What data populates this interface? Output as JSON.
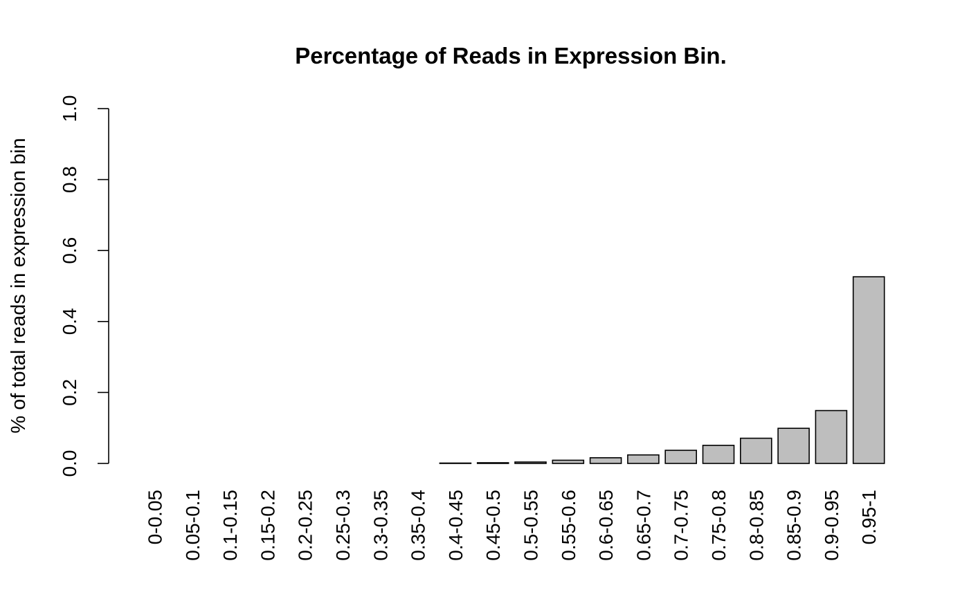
{
  "chart_data": {
    "type": "bar",
    "title": "Percentage of Reads in Expression Bin.",
    "xlabel": "",
    "ylabel": "% of total reads in expression bin",
    "ylim": [
      0,
      1
    ],
    "yticks": [
      "0.0",
      "0.2",
      "0.4",
      "0.6",
      "0.8",
      "1.0"
    ],
    "categories": [
      "0-0.05",
      "0.05-0.1",
      "0.1-0.15",
      "0.15-0.2",
      "0.2-0.25",
      "0.25-0.3",
      "0.3-0.35",
      "0.35-0.4",
      "0.4-0.45",
      "0.45-0.5",
      "0.5-0.55",
      "0.55-0.6",
      "0.6-0.65",
      "0.65-0.7",
      "0.7-0.75",
      "0.75-0.8",
      "0.8-0.85",
      "0.85-0.9",
      "0.9-0.95",
      "0.95-1"
    ],
    "values": [
      0.0,
      0.0,
      0.0,
      0.0,
      0.0,
      0.0,
      0.0,
      0.0,
      0.001,
      0.002,
      0.004,
      0.009,
      0.016,
      0.024,
      0.037,
      0.051,
      0.071,
      0.099,
      0.149,
      0.526
    ],
    "bar_color": "#bebebe",
    "border_color": "#000000",
    "grid": false,
    "legend": "none"
  }
}
